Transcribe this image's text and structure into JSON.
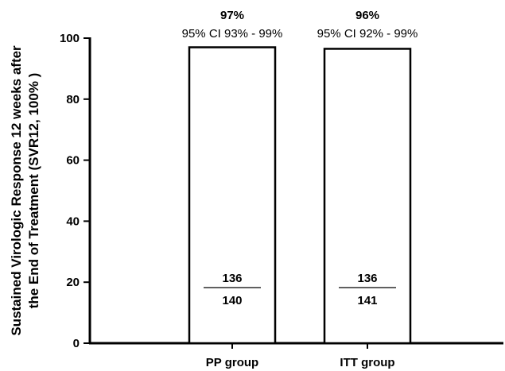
{
  "chart_data": {
    "type": "bar",
    "ylabel_line1": "Sustained Virologic Response 12 weeks after",
    "ylabel_line2": "the End of Treatment (SVR12, 100% )",
    "ylim": [
      0,
      100
    ],
    "yticks": [
      0,
      20,
      40,
      60,
      80,
      100
    ],
    "categories": [
      "PP group",
      "ITT group"
    ],
    "values": [
      97,
      96.5
    ],
    "percent_labels": [
      "97%",
      "96%"
    ],
    "ci_labels": [
      "95% CI 93% - 99%",
      "95% CI 92% - 99%"
    ],
    "numerators": [
      "136",
      "136"
    ],
    "denominators": [
      "140",
      "141"
    ],
    "grid": false,
    "colors": {
      "bar_fill": "#ffffff",
      "bar_stroke": "#000000",
      "axis": "#000000"
    }
  }
}
